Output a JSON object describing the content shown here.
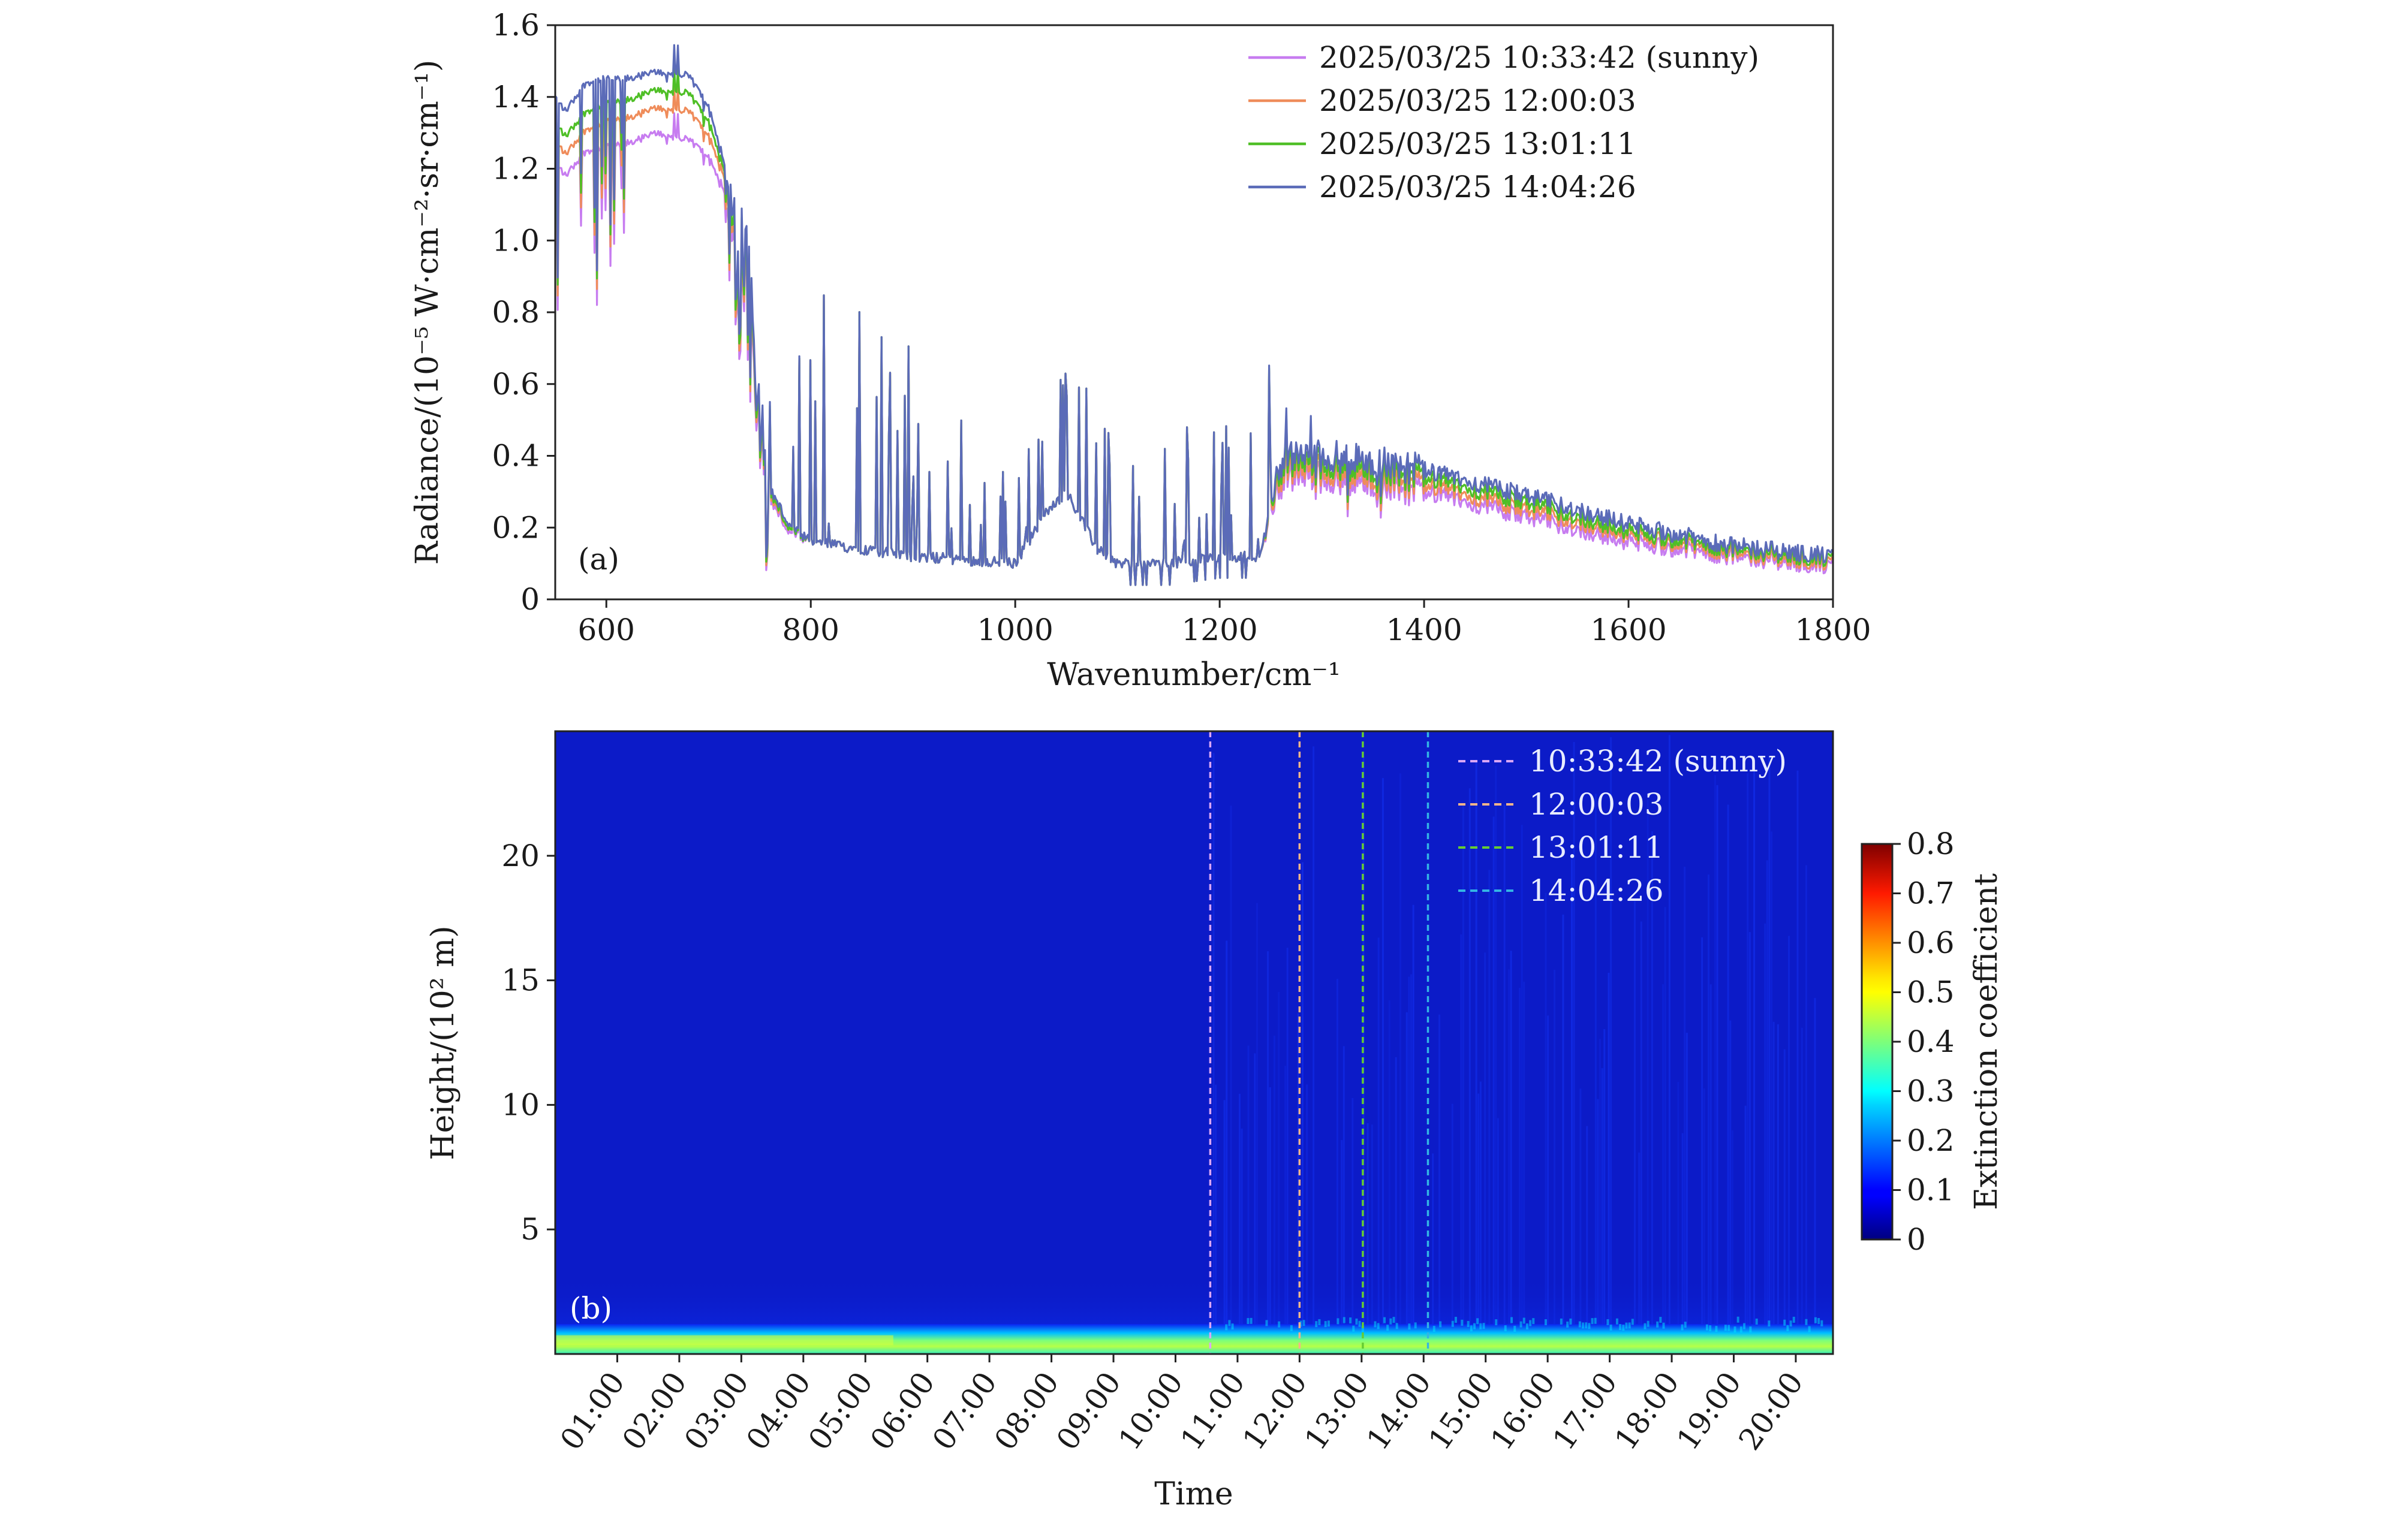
{
  "chart_data": [
    {
      "panel": "a",
      "type": "line",
      "panel_label": "(a)",
      "xlabel": "Wavenumber/cm⁻¹",
      "ylabel": "Radiance/(10⁻⁵ W·cm⁻²·sr·cm⁻¹)",
      "xlim": [
        550,
        1800
      ],
      "ylim": [
        0,
        1.6
      ],
      "xticks": [
        "600",
        "800",
        "1000",
        "1200",
        "1400",
        "1600",
        "1800"
      ],
      "yticks": [
        "0",
        "0.2",
        "0.4",
        "0.6",
        "0.8",
        "1.0",
        "1.2",
        "1.4",
        "1.6"
      ],
      "legend_position": "top-right",
      "series": [
        {
          "name": "2025/03/25 10:33:42 (sunny)",
          "color": "#c77cf0",
          "scale": 0.82,
          "x": [
            550,
            560,
            580,
            600,
            620,
            650,
            680,
            700,
            715,
            725,
            740,
            750,
            760,
            780,
            800,
            850,
            900,
            950,
            1000,
            1030,
            1050,
            1080,
            1100,
            1150,
            1200,
            1240,
            1260,
            1300,
            1340,
            1400,
            1500,
            1600,
            1700,
            1800
          ],
          "y": [
            1.22,
            1.18,
            1.25,
            1.26,
            1.27,
            1.3,
            1.28,
            1.24,
            1.14,
            0.98,
            0.92,
            0.5,
            0.28,
            0.18,
            0.16,
            0.14,
            0.12,
            0.11,
            0.1,
            0.24,
            0.3,
            0.14,
            0.1,
            0.1,
            0.12,
            0.12,
            0.34,
            0.34,
            0.33,
            0.3,
            0.23,
            0.16,
            0.12,
            0.09
          ]
        },
        {
          "name": "2025/03/25 12:00:03",
          "color": "#ef8c5a",
          "scale": 0.86,
          "x": [
            550,
            560,
            580,
            600,
            620,
            650,
            680,
            700,
            715,
            725,
            740,
            750,
            760,
            780,
            800,
            850,
            900,
            950,
            1000,
            1030,
            1050,
            1080,
            1100,
            1150,
            1200,
            1240,
            1260,
            1300,
            1340,
            1400,
            1500,
            1600,
            1700,
            1800
          ],
          "y": [
            1.28,
            1.24,
            1.31,
            1.33,
            1.34,
            1.37,
            1.36,
            1.3,
            1.18,
            1.0,
            0.95,
            0.52,
            0.29,
            0.19,
            0.16,
            0.14,
            0.12,
            0.11,
            0.1,
            0.24,
            0.3,
            0.14,
            0.1,
            0.1,
            0.12,
            0.12,
            0.36,
            0.36,
            0.35,
            0.32,
            0.25,
            0.18,
            0.13,
            0.1
          ]
        },
        {
          "name": "2025/03/25 13:01:11",
          "color": "#4fbf26",
          "scale": 0.9,
          "x": [
            550,
            560,
            580,
            600,
            620,
            650,
            680,
            700,
            715,
            725,
            740,
            750,
            760,
            780,
            800,
            850,
            900,
            950,
            1000,
            1030,
            1050,
            1080,
            1100,
            1150,
            1200,
            1240,
            1260,
            1300,
            1340,
            1400,
            1500,
            1600,
            1700,
            1800
          ],
          "y": [
            1.33,
            1.29,
            1.36,
            1.38,
            1.39,
            1.42,
            1.41,
            1.34,
            1.2,
            1.02,
            0.97,
            0.53,
            0.3,
            0.19,
            0.16,
            0.14,
            0.12,
            0.11,
            0.1,
            0.24,
            0.3,
            0.14,
            0.1,
            0.1,
            0.12,
            0.12,
            0.38,
            0.38,
            0.37,
            0.34,
            0.27,
            0.19,
            0.14,
            0.11
          ]
        },
        {
          "name": "2025/03/25 14:04:26",
          "color": "#5b6bb8",
          "scale": 1.0,
          "x": [
            550,
            560,
            580,
            600,
            620,
            650,
            680,
            700,
            715,
            725,
            740,
            750,
            760,
            780,
            800,
            850,
            900,
            950,
            1000,
            1030,
            1050,
            1080,
            1100,
            1150,
            1200,
            1240,
            1260,
            1300,
            1340,
            1400,
            1500,
            1600,
            1700,
            1800
          ],
          "y": [
            1.4,
            1.36,
            1.44,
            1.45,
            1.45,
            1.47,
            1.46,
            1.38,
            1.22,
            1.05,
            0.99,
            0.55,
            0.31,
            0.2,
            0.16,
            0.14,
            0.12,
            0.11,
            0.1,
            0.24,
            0.3,
            0.14,
            0.1,
            0.1,
            0.12,
            0.12,
            0.4,
            0.4,
            0.39,
            0.36,
            0.29,
            0.21,
            0.15,
            0.12
          ]
        }
      ]
    },
    {
      "panel": "b",
      "type": "heatmap",
      "panel_label": "(b)",
      "xlabel": "Time",
      "ylabel": "Height/(10² m)",
      "xticks": [
        "01:00",
        "02:00",
        "03:00",
        "04:00",
        "05:00",
        "06:00",
        "07:00",
        "08:00",
        "09:00",
        "10:00",
        "11:00",
        "12:00",
        "13:00",
        "14:00",
        "15:00",
        "16:00",
        "17:00",
        "18:00",
        "19:00",
        "20:00"
      ],
      "xlim_hours": [
        0.0,
        20.6
      ],
      "yticks": [
        "5",
        "10",
        "15",
        "20"
      ],
      "ylim": [
        0,
        25
      ],
      "colorbar": {
        "label": "Extinction coefficient",
        "min": 0,
        "max": 0.8,
        "ticks": [
          "0",
          "0.1",
          "0.2",
          "0.3",
          "0.4",
          "0.5",
          "0.6",
          "0.7",
          "0.8"
        ],
        "colormap": "jet"
      },
      "background_value": 0.03,
      "surface_layer": {
        "height_top": 1.2,
        "peak_value": 0.47
      },
      "markers": [
        {
          "label": "10:33:42 (sunny)",
          "hour": 10.56,
          "color": "#d9a6f5"
        },
        {
          "label": "12:00:03",
          "hour": 12.0,
          "color": "#f2b48a"
        },
        {
          "label": "13:01:11",
          "hour": 13.02,
          "color": "#66cc33"
        },
        {
          "label": "14:04:26",
          "hour": 14.07,
          "color": "#33b5e5"
        }
      ],
      "legend_position": "top-right"
    }
  ]
}
